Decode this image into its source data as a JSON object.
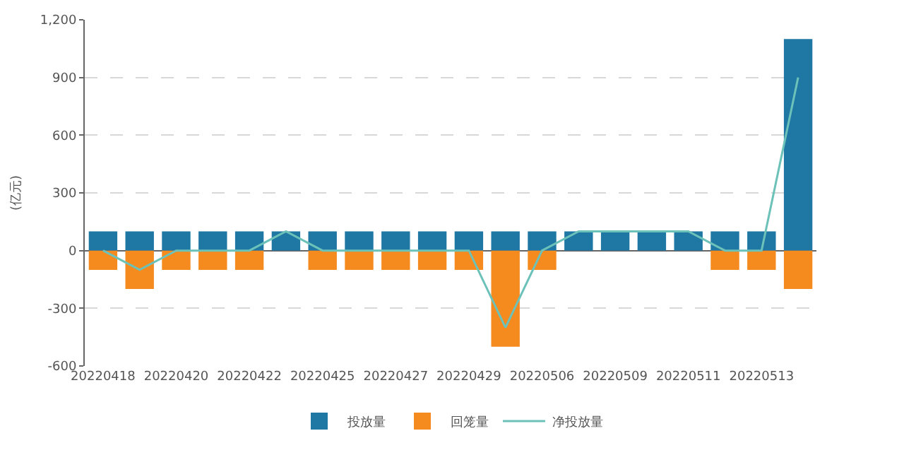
{
  "chart_data": {
    "type": "bar",
    "ylabel": "(亿元)",
    "categories": [
      "20220418",
      null,
      "20220420",
      null,
      "20220422",
      null,
      "20220425",
      null,
      "20220427",
      null,
      "20220429",
      null,
      "20220506",
      null,
      "20220509",
      null,
      "20220511",
      null,
      "20220513",
      null
    ],
    "series": [
      {
        "name": "投放量",
        "color": "#1f77a4",
        "values": [
          100,
          100,
          100,
          100,
          100,
          100,
          100,
          100,
          100,
          100,
          100,
          100,
          100,
          100,
          100,
          100,
          100,
          100,
          100,
          1100
        ]
      },
      {
        "name": "回笼量",
        "color": "#f58a1f",
        "values": [
          -100,
          -200,
          -100,
          -100,
          -100,
          0,
          -100,
          -100,
          -100,
          -100,
          -100,
          -500,
          -100,
          0,
          0,
          0,
          0,
          -100,
          -100,
          -200
        ]
      },
      {
        "name": "净投放量",
        "type": "line",
        "color": "#6cc1b8",
        "values": [
          0,
          -100,
          0,
          0,
          0,
          100,
          0,
          0,
          0,
          0,
          0,
          -400,
          0,
          100,
          100,
          100,
          100,
          0,
          0,
          900
        ]
      }
    ],
    "ylim": [
      -600,
      1200
    ],
    "yticks": [
      -600,
      -300,
      0,
      300,
      600,
      900,
      {
        "value": 1200,
        "label": "1,200"
      }
    ],
    "stacked": true,
    "grid": "y",
    "legend": "bottom",
    "marker": "none",
    "line_style": "solid"
  }
}
